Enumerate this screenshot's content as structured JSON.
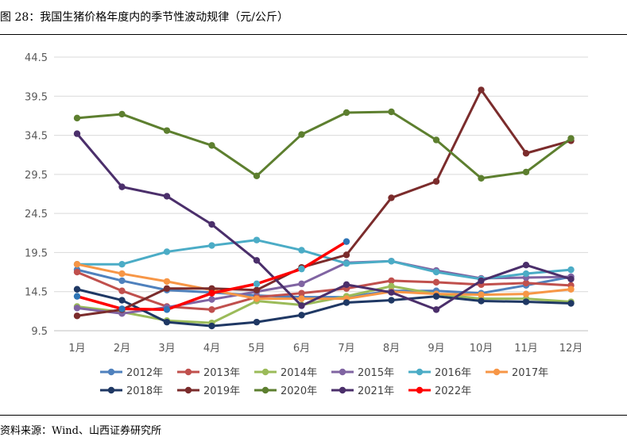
{
  "figure": {
    "title": "图 28：我国生猪价格年度内的季节性波动规律（元/公斤）",
    "source": "资料来源：Wind、山西证券研究所"
  },
  "chart_data": {
    "type": "line",
    "categories": [
      "1月",
      "2月",
      "3月",
      "4月",
      "5月",
      "6月",
      "7月",
      "8月",
      "9月",
      "10月",
      "11月",
      "12月"
    ],
    "y_ticks": [
      9.5,
      14.5,
      19.5,
      24.5,
      29.5,
      34.5,
      39.5,
      44.5
    ],
    "ylim": [
      9.5,
      44.5
    ],
    "grid": true,
    "legend_position": "bottom",
    "series": [
      {
        "name": "2012年",
        "color": "#4f81bd",
        "values": [
          17.3,
          15.9,
          14.7,
          14.4,
          14.0,
          13.8,
          13.8,
          14.6,
          14.6,
          14.3,
          15.3,
          16.4
        ]
      },
      {
        "name": "2013年",
        "color": "#c0504d",
        "values": [
          17.0,
          14.6,
          12.6,
          12.2,
          13.8,
          14.3,
          14.9,
          15.9,
          15.7,
          15.4,
          15.6,
          15.3
        ]
      },
      {
        "name": "2014年",
        "color": "#9bbb59",
        "values": [
          12.6,
          11.9,
          10.8,
          10.5,
          13.3,
          12.8,
          13.9,
          15.2,
          14.2,
          13.6,
          13.6,
          13.2
        ]
      },
      {
        "name": "2015年",
        "color": "#8064a2",
        "values": [
          12.4,
          11.7,
          12.5,
          13.5,
          14.5,
          15.5,
          18.2,
          18.4,
          17.2,
          16.2,
          16.3,
          16.4
        ]
      },
      {
        "name": "2016年",
        "color": "#4bacc6",
        "values": [
          18.0,
          18.0,
          19.6,
          20.4,
          21.1,
          19.8,
          18.1,
          18.4,
          17.0,
          16.1,
          16.8,
          17.3
        ]
      },
      {
        "name": "2017年",
        "color": "#f79646",
        "values": [
          18.0,
          16.8,
          15.8,
          14.7,
          13.6,
          13.6,
          13.6,
          14.5,
          14.2,
          14.1,
          14.2,
          14.8
        ]
      },
      {
        "name": "2018年",
        "color": "#1f3864",
        "values": [
          14.8,
          13.4,
          10.6,
          10.1,
          10.6,
          11.5,
          13.1,
          13.4,
          13.9,
          13.3,
          13.2,
          13.0
        ]
      },
      {
        "name": "2019年",
        "color": "#7b2c2c",
        "values": [
          11.4,
          12.2,
          14.9,
          14.9,
          14.7,
          17.6,
          19.2,
          26.5,
          28.6,
          40.3,
          32.2,
          33.8
        ]
      },
      {
        "name": "2020年",
        "color": "#5d7f2f",
        "values": [
          36.7,
          37.2,
          35.1,
          33.2,
          29.3,
          34.6,
          37.4,
          37.5,
          33.9,
          29.0,
          29.8,
          34.1
        ]
      },
      {
        "name": "2021年",
        "color": "#4b2f6b",
        "values": [
          34.7,
          27.9,
          26.7,
          23.1,
          18.5,
          12.7,
          15.4,
          14.4,
          12.2,
          15.9,
          17.9,
          16.1
        ]
      },
      {
        "name": "2022年",
        "color": "#ff0000",
        "values": [
          13.9,
          12.3,
          12.2,
          14.3,
          15.5,
          17.4,
          20.9,
          null,
          null,
          null,
          null,
          null
        ]
      }
    ],
    "point_markers": [
      {
        "series": "2022年",
        "index": 0,
        "color": "#2e75b6"
      },
      {
        "series": "2022年",
        "index": 1,
        "color": "#2e75b6"
      },
      {
        "series": "2022年",
        "index": 2,
        "color": "#2e75b6"
      },
      {
        "series": "2022年",
        "index": 4,
        "color": "#4bacc6"
      },
      {
        "series": "2022年",
        "index": 5,
        "color": "#4bacc6"
      },
      {
        "series": "2022年",
        "index": 6,
        "color": "#2e75b6"
      }
    ]
  }
}
